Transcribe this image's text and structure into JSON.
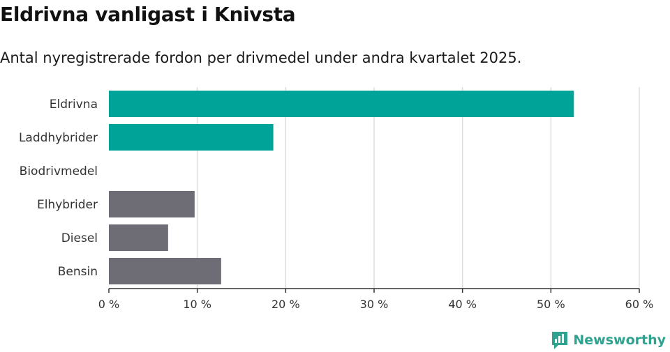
{
  "title": "Eldrivna vanligast i Knivsta",
  "subtitle": "Antal nyregistrerade fordon per drivmedel under andra kvartalet 2025.",
  "brand": {
    "name": "Newsworthy",
    "icon": "newsworthy-logo-icon"
  },
  "colors": {
    "highlight": "#00a398",
    "default": "#6e6d76",
    "grid": "#dddddd",
    "axis": "#333333",
    "brand": "#2fa290"
  },
  "chart_data": {
    "type": "bar",
    "orientation": "horizontal",
    "categories": [
      "Eldrivna",
      "Laddhybrider",
      "Biodrivmedel",
      "Elhybrider",
      "Diesel",
      "Bensin"
    ],
    "values": [
      52.6,
      18.6,
      0,
      9.7,
      6.7,
      12.7
    ],
    "highlighted": [
      true,
      true,
      false,
      false,
      false,
      false
    ],
    "xlim": [
      0,
      60
    ],
    "xticks": [
      0,
      10,
      20,
      30,
      40,
      50,
      60
    ],
    "xtick_labels": [
      "0 %",
      "10 %",
      "20 %",
      "30 %",
      "40 %",
      "50 %",
      "60 %"
    ],
    "grid": true,
    "legend": "none"
  }
}
